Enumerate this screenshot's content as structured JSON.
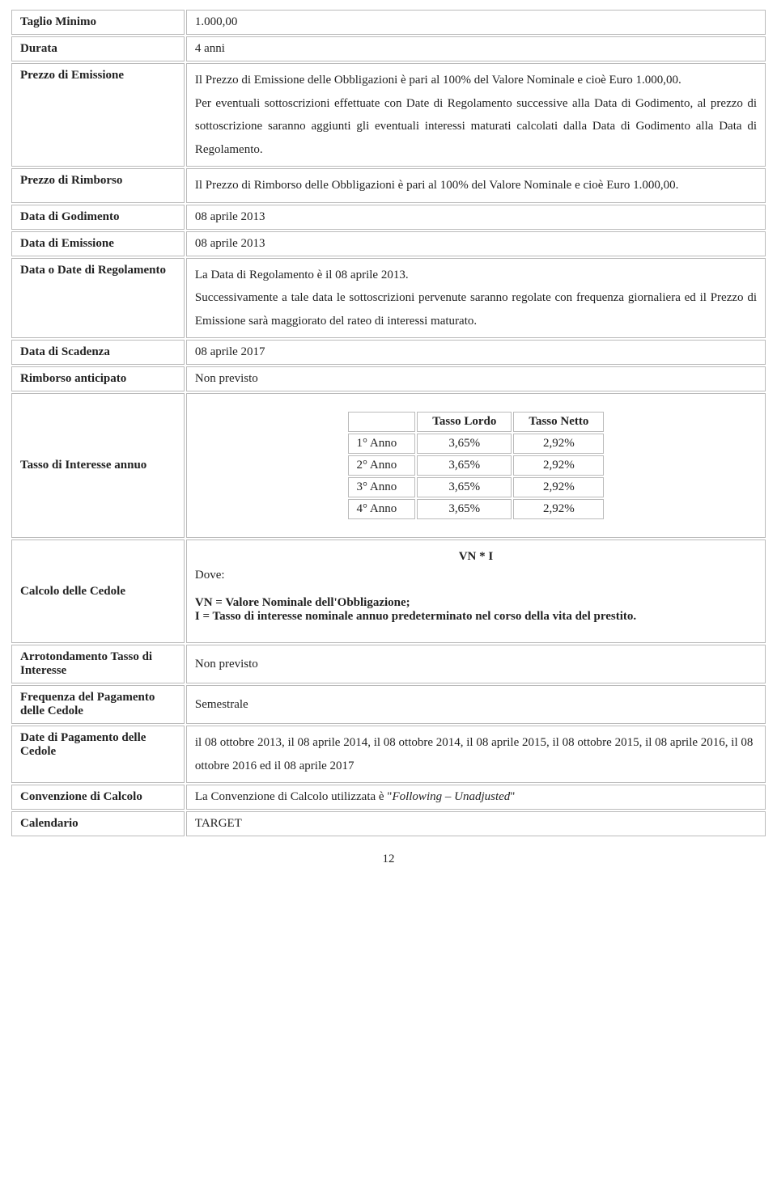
{
  "rows": {
    "taglio_minimo": {
      "label": "Taglio Minimo",
      "value": "1.000,00"
    },
    "durata": {
      "label": "Durata",
      "value": " 4 anni"
    },
    "prezzo_emissione": {
      "label": "Prezzo di Emissione",
      "p1": "Il Prezzo di Emissione delle Obbligazioni è pari al 100%  del Valore Nominale e cioè Euro 1.000,00.",
      "p2": "Per eventuali sottoscrizioni effettuate con Date di Regolamento successive alla Data di Godimento, al prezzo di sottoscrizione saranno aggiunti gli eventuali interessi maturati calcolati dalla Data di Godimento alla Data di Regolamento."
    },
    "prezzo_rimborso": {
      "label": "Prezzo di Rimborso",
      "value": "Il Prezzo di Rimborso delle Obbligazioni è pari al 100%  del Valore Nominale e cioè Euro 1.000,00."
    },
    "data_godimento": {
      "label": "Data di Godimento",
      "value": "08 aprile 2013"
    },
    "data_emissione": {
      "label": "Data di Emissione",
      "value": "08 aprile 2013"
    },
    "data_regolamento": {
      "label": "Data o Date di Regolamento",
      "p1": "La Data di Regolamento è il 08 aprile 2013.",
      "p2": "Successivamente a tale data le sottoscrizioni pervenute saranno regolate con frequenza giornaliera ed il Prezzo di Emissione sarà maggiorato del rateo di interessi maturato."
    },
    "data_scadenza": {
      "label": "Data di Scadenza",
      "value": "08 aprile 2017"
    },
    "rimborso_anticipato": {
      "label": "Rimborso anticipato",
      "value": "Non previsto"
    },
    "tasso_interesse": {
      "label": "Tasso di Interesse annuo"
    },
    "calcolo_cedole": {
      "label": "Calcolo delle Cedole",
      "formula": "VN * I",
      "dove": "Dove:",
      "def1": "VN = Valore Nominale dell'Obbligazione;",
      "def2": "I = Tasso di interesse nominale annuo predeterminato nel corso della vita del prestito."
    },
    "arrotondamento": {
      "label": "Arrotondamento Tasso di Interesse",
      "value": "Non previsto"
    },
    "frequenza": {
      "label": "Frequenza del Pagamento delle Cedole",
      "value": "Semestrale"
    },
    "date_pagamento": {
      "label": "Date di Pagamento delle Cedole",
      "value": "il 08 ottobre 2013, il 08 aprile 2014, il 08 ottobre 2014, il 08 aprile 2015, il 08 ottobre 2015, il 08 aprile 2016, il 08 ottobre 2016 ed il 08 aprile 2017"
    },
    "convenzione": {
      "label": "Convenzione di Calcolo",
      "prefix": "La Convenzione di Calcolo utilizzata è \"",
      "italic": "Following – Unadjusted",
      "suffix": "\""
    },
    "calendario": {
      "label": "Calendario",
      "value": "TARGET"
    }
  },
  "inner_table": {
    "h_empty": "",
    "h_lordo": "Tasso Lordo",
    "h_netto": "Tasso Netto",
    "rows": [
      {
        "year": "1° Anno",
        "lordo": "3,65%",
        "netto": "2,92%"
      },
      {
        "year": "2° Anno",
        "lordo": "3,65%",
        "netto": "2,92%"
      },
      {
        "year": "3° Anno",
        "lordo": "3,65%",
        "netto": "2,92%"
      },
      {
        "year": "4° Anno",
        "lordo": "3,65%",
        "netto": "2,92%"
      }
    ]
  },
  "page_number": "12"
}
